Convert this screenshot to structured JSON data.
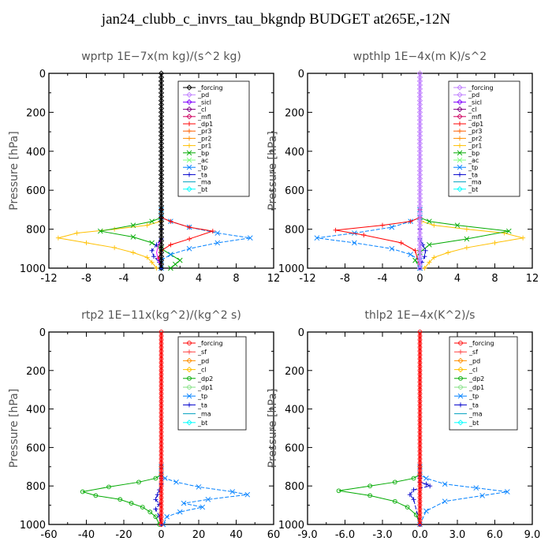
{
  "title": "jan24_clubb_c_invrs_tau_bkgndp  BUDGET at265E,-12N",
  "chart_data": [
    {
      "type": "line",
      "title": "wprtp   1E−7x(m kg)/(s^2 kg)",
      "ylabel": "Pressure  [hPa]",
      "xlim": [
        -12,
        12
      ],
      "ylim": [
        1000,
        0
      ],
      "xticks": [
        "-12",
        "-8",
        "-4",
        "0",
        "4",
        "8",
        "12"
      ],
      "xtick_values": [
        -12,
        -8,
        -4,
        0,
        4,
        8,
        12
      ],
      "yticks": [
        "0",
        "200",
        "400",
        "600",
        "800",
        "1000"
      ],
      "ytick_values": [
        0,
        200,
        400,
        600,
        800,
        1000
      ],
      "legend": [
        "_forcing",
        "_pd",
        "_sicl",
        "_cl",
        "_mfl",
        "_dp1",
        "_pr3",
        "_pr2",
        "_pr1",
        "_bp",
        "_ac",
        "_tp",
        "_ta",
        "_ma",
        "_bt"
      ],
      "series": [
        {
          "name": "_forcing",
          "color": "#000000",
          "marker": "diamond",
          "x": [
            0,
            0,
            0,
            0,
            0,
            0,
            0,
            0,
            0,
            0,
            0,
            0,
            0,
            0,
            0,
            0,
            0,
            0,
            0,
            0,
            0,
            0,
            0,
            0,
            0,
            0,
            0,
            0,
            0,
            0,
            0,
            0,
            0,
            0,
            0,
            0,
            0,
            0,
            0,
            0,
            0,
            0,
            0,
            0,
            0,
            0,
            0,
            0,
            0,
            0,
            0
          ],
          "y": [
            0,
            20,
            40,
            60,
            80,
            100,
            120,
            140,
            160,
            180,
            200,
            220,
            240,
            260,
            280,
            300,
            320,
            340,
            360,
            380,
            400,
            420,
            440,
            460,
            480,
            500,
            520,
            540,
            560,
            580,
            600,
            620,
            640,
            660,
            680,
            700,
            720,
            740,
            760,
            780,
            800,
            820,
            840,
            860,
            880,
            900,
            920,
            940,
            960,
            980,
            1000
          ]
        },
        {
          "name": "_pr1",
          "color": "#ffc000",
          "marker": "cross",
          "x": [
            0,
            0,
            -0.1,
            -1.5,
            -5,
            -9,
            -11,
            -8,
            -5,
            -3,
            -1.5,
            -1,
            -0.5
          ],
          "y": [
            700,
            740,
            760,
            780,
            800,
            820,
            845,
            870,
            895,
            920,
            945,
            970,
            1000
          ]
        },
        {
          "name": "_bp",
          "color": "#00aa00",
          "marker": "x",
          "x": [
            0,
            0,
            -1,
            -3,
            -6.5,
            -3,
            -1,
            0,
            1,
            2,
            1.5,
            1
          ],
          "y": [
            700,
            740,
            760,
            780,
            810,
            840,
            870,
            900,
            930,
            960,
            980,
            1000
          ]
        },
        {
          "name": "_tp",
          "color": "#0080ff",
          "marker": "x",
          "x": [
            0,
            0,
            1,
            3,
            6,
            9.5,
            6,
            3,
            1,
            0,
            0
          ],
          "y": [
            700,
            740,
            760,
            790,
            820,
            845,
            870,
            900,
            930,
            960,
            1000
          ]
        },
        {
          "name": "_dp1",
          "color": "#ff0000",
          "marker": "cross",
          "x": [
            0,
            0,
            1,
            3,
            5.5,
            3,
            1,
            0,
            -0.3,
            0
          ],
          "y": [
            700,
            740,
            760,
            790,
            810,
            850,
            880,
            910,
            950,
            1000
          ]
        },
        {
          "name": "_ta",
          "color": "#0000cc",
          "marker": "plus",
          "x": [
            0,
            0,
            -0.5,
            -1,
            -0.8,
            -0.2,
            0
          ],
          "y": [
            800,
            850,
            880,
            910,
            940,
            970,
            1000
          ]
        },
        {
          "name": "_pd",
          "color": "#ff00ff",
          "marker": "none",
          "x": [
            0,
            0,
            -0.3,
            -0.5,
            -0.3,
            0
          ],
          "y": [
            800,
            850,
            880,
            920,
            960,
            1000
          ]
        }
      ]
    },
    {
      "type": "line",
      "title": "wpthlp   1E−4x(m K)/s^2",
      "ylabel": "Pressure  [hPa]",
      "xlim": [
        -12,
        12
      ],
      "ylim": [
        1000,
        0
      ],
      "xticks": [
        "-12",
        "-8",
        "-4",
        "0",
        "4",
        "8",
        "12"
      ],
      "xtick_values": [
        -12,
        -8,
        -4,
        0,
        4,
        8,
        12
      ],
      "yticks": [
        "0",
        "200",
        "400",
        "600",
        "800",
        "1000"
      ],
      "ytick_values": [
        0,
        200,
        400,
        600,
        800,
        1000
      ],
      "legend": [
        "_forcing",
        "_pd",
        "_sicl",
        "_cl",
        "_mfl",
        "_dp1",
        "_pr3",
        "_pr2",
        "_pr1",
        "_bp",
        "_ac",
        "_tp",
        "_ta",
        "_ma",
        "_bt"
      ],
      "series": [
        {
          "name": "_forcing",
          "color": "#c080ff",
          "marker": "diamond",
          "x": [
            0,
            0,
            0,
            0,
            0,
            0,
            0,
            0,
            0,
            0,
            0,
            0,
            0,
            0,
            0,
            0,
            0,
            0,
            0,
            0,
            0,
            0,
            0,
            0,
            0,
            0,
            0,
            0,
            0,
            0,
            0,
            0,
            0,
            0,
            0,
            0,
            0,
            0,
            0,
            0,
            0,
            0,
            0,
            0,
            0,
            0,
            0,
            0,
            0,
            0,
            0
          ],
          "y": [
            0,
            20,
            40,
            60,
            80,
            100,
            120,
            140,
            160,
            180,
            200,
            220,
            240,
            260,
            280,
            300,
            320,
            340,
            360,
            380,
            400,
            420,
            440,
            460,
            480,
            500,
            520,
            540,
            560,
            580,
            600,
            620,
            640,
            660,
            680,
            700,
            720,
            740,
            760,
            780,
            800,
            820,
            840,
            860,
            880,
            900,
            920,
            940,
            960,
            980,
            1000
          ]
        },
        {
          "name": "_pr1",
          "color": "#ffc000",
          "marker": "cross",
          "x": [
            0,
            0,
            0.2,
            1.5,
            5,
            9,
            11,
            8,
            5,
            3,
            1.5,
            1,
            0.5
          ],
          "y": [
            700,
            740,
            760,
            780,
            800,
            820,
            845,
            870,
            895,
            920,
            945,
            970,
            1000
          ]
        },
        {
          "name": "_bp",
          "color": "#00aa00",
          "marker": "x",
          "x": [
            0,
            0,
            1,
            4,
            9.5,
            5,
            1,
            0,
            -0.5,
            0
          ],
          "y": [
            700,
            740,
            760,
            780,
            810,
            850,
            880,
            920,
            960,
            1000
          ]
        },
        {
          "name": "_tp",
          "color": "#0080ff",
          "marker": "x",
          "x": [
            0,
            0,
            -1,
            -3,
            -7,
            -11,
            -7,
            -3,
            -1,
            0,
            0
          ],
          "y": [
            700,
            740,
            760,
            790,
            820,
            845,
            870,
            900,
            930,
            960,
            1000
          ]
        },
        {
          "name": "_dp1",
          "color": "#ff0000",
          "marker": "cross",
          "x": [
            0,
            0,
            -1,
            -4,
            -9,
            -6,
            -2,
            -0.5,
            0
          ],
          "y": [
            700,
            740,
            760,
            780,
            805,
            830,
            870,
            910,
            1000
          ]
        },
        {
          "name": "_ta",
          "color": "#0000cc",
          "marker": "plus",
          "x": [
            0,
            0,
            0.3,
            0.6,
            0.5,
            0.2,
            0
          ],
          "y": [
            800,
            850,
            880,
            910,
            940,
            970,
            1000
          ]
        }
      ]
    },
    {
      "type": "line",
      "title": "rtp2   1E−11x(kg^2)/(kg^2 s)",
      "ylabel": "Pressure  [hPa]",
      "xlim": [
        -60,
        60
      ],
      "ylim": [
        1000,
        0
      ],
      "xticks": [
        "-60",
        "-40",
        "-20",
        "0",
        "20",
        "40",
        "60"
      ],
      "xtick_values": [
        -60,
        -40,
        -20,
        0,
        20,
        40,
        60
      ],
      "yticks": [
        "0",
        "200",
        "400",
        "600",
        "800",
        "1000"
      ],
      "ytick_values": [
        0,
        200,
        400,
        600,
        800,
        1000
      ],
      "legend": [
        "_forcing",
        "_sf",
        "_pd",
        "_cl",
        "_dp2",
        "_dp1",
        "_tp",
        "_ta",
        "_ma",
        "_bt"
      ],
      "series": [
        {
          "name": "_forcing",
          "color": "#ff0000",
          "marker": "circle",
          "x": [
            0,
            0,
            0,
            0,
            0,
            0,
            0,
            0,
            0,
            0,
            0,
            0,
            0,
            0,
            0,
            0,
            0,
            0,
            0,
            0,
            0,
            0,
            0,
            0,
            0,
            0,
            0,
            0,
            0,
            0,
            0,
            0,
            0,
            0,
            0,
            0,
            0,
            0,
            0,
            0,
            0,
            0,
            0,
            0,
            0,
            0,
            0,
            0,
            0,
            0,
            0
          ],
          "y": [
            0,
            20,
            40,
            60,
            80,
            100,
            120,
            140,
            160,
            180,
            200,
            220,
            240,
            260,
            280,
            300,
            320,
            340,
            360,
            380,
            400,
            420,
            440,
            460,
            480,
            500,
            520,
            540,
            560,
            580,
            600,
            620,
            640,
            660,
            680,
            700,
            720,
            740,
            760,
            780,
            800,
            820,
            840,
            860,
            880,
            900,
            920,
            940,
            960,
            980,
            1000
          ]
        },
        {
          "name": "_dp2",
          "color": "#00aa00",
          "marker": "circle",
          "x": [
            0,
            0,
            -3,
            -12,
            -28,
            -42,
            -35,
            -22,
            -16,
            -10,
            -6,
            -3,
            -1
          ],
          "y": [
            700,
            740,
            760,
            780,
            805,
            830,
            850,
            870,
            890,
            910,
            935,
            960,
            1000
          ]
        },
        {
          "name": "_tp",
          "color": "#0080ff",
          "marker": "x",
          "x": [
            0,
            0,
            2,
            8,
            20,
            38,
            46,
            25,
            12,
            22,
            10,
            3,
            1
          ],
          "y": [
            700,
            740,
            760,
            780,
            805,
            830,
            845,
            870,
            890,
            910,
            935,
            960,
            1000
          ]
        },
        {
          "name": "_ta",
          "color": "#0000cc",
          "marker": "plus",
          "x": [
            0,
            0,
            -1,
            -2,
            -3,
            -1,
            -3,
            -1,
            0
          ],
          "y": [
            760,
            790,
            820,
            845,
            870,
            895,
            920,
            960,
            1000
          ]
        }
      ]
    },
    {
      "type": "line",
      "title": "thlp2   1E−4x(K^2)/s",
      "ylabel": "Pressure  [hPa]",
      "xlim": [
        -9,
        9
      ],
      "ylim": [
        1000,
        0
      ],
      "xticks": [
        "-9.0",
        "-6.0",
        "-3.0",
        "0.0",
        "3.0",
        "6.0",
        "9.0"
      ],
      "xtick_values": [
        -9,
        -6,
        -3,
        0,
        3,
        6,
        9
      ],
      "yticks": [
        "0",
        "200",
        "400",
        "600",
        "800",
        "1000"
      ],
      "ytick_values": [
        0,
        200,
        400,
        600,
        800,
        1000
      ],
      "legend": [
        "_forcing",
        "_sf",
        "_pd",
        "_cl",
        "_dp2",
        "_dp1",
        "_tp",
        "_ta",
        "_ma",
        "_bt"
      ],
      "series": [
        {
          "name": "_forcing",
          "color": "#ff0000",
          "marker": "circle",
          "x": [
            0,
            0,
            0,
            0,
            0,
            0,
            0,
            0,
            0,
            0,
            0,
            0,
            0,
            0,
            0,
            0,
            0,
            0,
            0,
            0,
            0,
            0,
            0,
            0,
            0,
            0,
            0,
            0,
            0,
            0,
            0,
            0,
            0,
            0,
            0,
            0,
            0,
            0,
            0,
            0,
            0,
            0,
            0,
            0,
            0,
            0,
            0,
            0,
            0,
            0,
            0
          ],
          "y": [
            0,
            20,
            40,
            60,
            80,
            100,
            120,
            140,
            160,
            180,
            200,
            220,
            240,
            260,
            280,
            300,
            320,
            340,
            360,
            380,
            400,
            420,
            440,
            460,
            480,
            500,
            520,
            540,
            560,
            580,
            600,
            620,
            640,
            660,
            680,
            700,
            720,
            740,
            760,
            780,
            800,
            820,
            840,
            860,
            880,
            900,
            920,
            940,
            960,
            980,
            1000
          ]
        },
        {
          "name": "_dp2",
          "color": "#00aa00",
          "marker": "circle",
          "x": [
            0,
            0,
            -0.5,
            -2,
            -4,
            -6.5,
            -4,
            -2,
            -1,
            -0.3,
            0
          ],
          "y": [
            700,
            740,
            760,
            780,
            800,
            825,
            850,
            880,
            910,
            950,
            1000
          ]
        },
        {
          "name": "_tp",
          "color": "#0080ff",
          "marker": "x",
          "x": [
            0,
            0,
            0.5,
            2,
            4.5,
            7,
            5,
            2,
            0.5,
            0
          ],
          "y": [
            700,
            740,
            760,
            790,
            810,
            830,
            850,
            880,
            930,
            1000
          ]
        },
        {
          "name": "_ta",
          "color": "#0000cc",
          "marker": "plus",
          "x": [
            0,
            0,
            0.5,
            0.8,
            -0.5,
            -0.8,
            -0.5,
            0
          ],
          "y": [
            760,
            780,
            790,
            800,
            820,
            845,
            870,
            1000
          ]
        }
      ]
    }
  ]
}
